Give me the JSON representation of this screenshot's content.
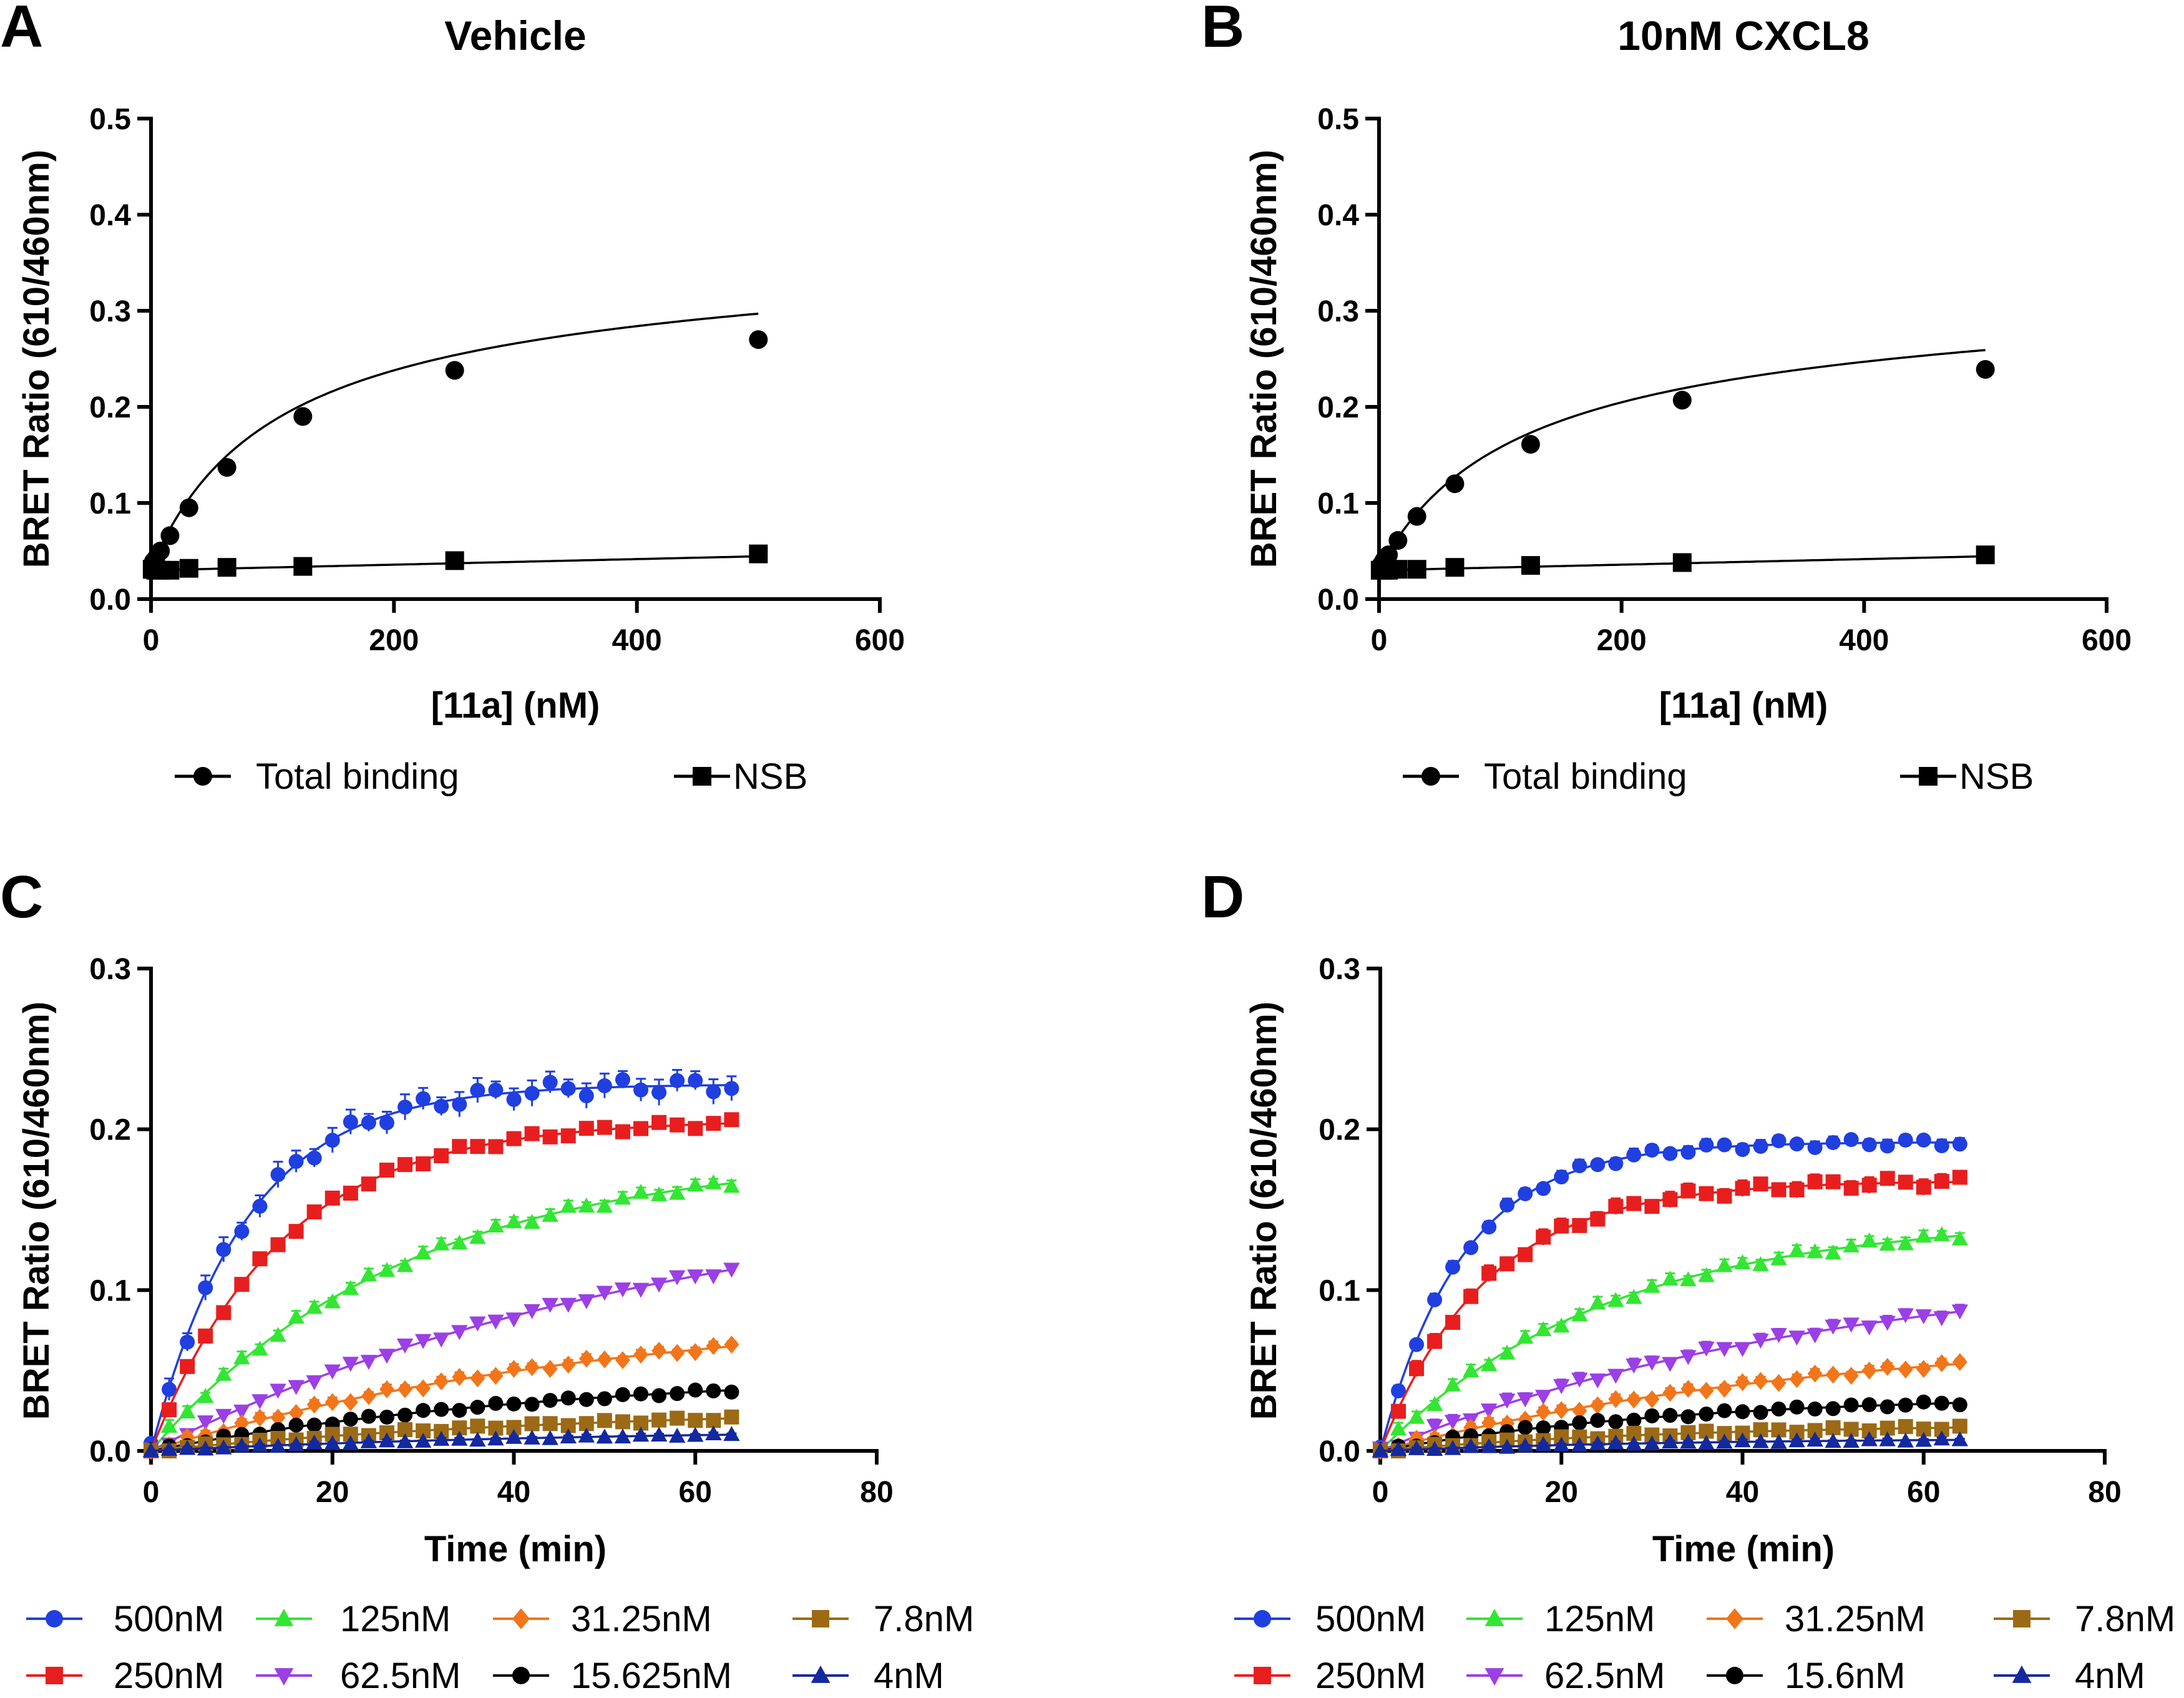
{
  "chart_data": [
    {
      "panel": "A",
      "type": "scatter",
      "title": "Vehicle",
      "xlabel": "[11a] (nM)",
      "ylabel": "BRET Ratio (610/460nm)",
      "xlim": [
        0,
        600
      ],
      "ylim": [
        0,
        0.5
      ],
      "xticks": [
        0,
        200,
        400,
        600
      ],
      "yticks": [
        0.0,
        0.1,
        0.2,
        0.3,
        0.4,
        0.5
      ],
      "xtick_labels": [
        "0",
        "200",
        "400",
        "600"
      ],
      "ytick_labels": [
        "0.0",
        "0.1",
        "0.2",
        "0.3",
        "0.4",
        "0.5"
      ],
      "legend_position": "bottom",
      "series": [
        {
          "name": "Total binding",
          "marker": "circle",
          "color": "#000000",
          "x": [
            0.98,
            1.95,
            3.9,
            7.8,
            15.6,
            31.25,
            62.5,
            125,
            250,
            500
          ],
          "y": [
            0.036,
            0.039,
            0.042,
            0.05,
            0.066,
            0.095,
            0.137,
            0.19,
            0.238,
            0.27
          ],
          "fit": {
            "model": "hyperbola",
            "bmax": 0.3,
            "kd": 100,
            "ns_slope": 3e-05,
            "baseline": 0.032
          }
        },
        {
          "name": "NSB",
          "marker": "square",
          "color": "#000000",
          "x": [
            0.98,
            1.95,
            3.9,
            7.8,
            15.6,
            31.25,
            62.5,
            125,
            250,
            500
          ],
          "y": [
            0.031,
            0.031,
            0.03,
            0.03,
            0.03,
            0.032,
            0.033,
            0.034,
            0.04,
            0.047
          ],
          "fit": {
            "model": "linear",
            "slope": 2.9e-05,
            "intercept": 0.03
          }
        }
      ]
    },
    {
      "panel": "B",
      "type": "scatter",
      "title": "10nM CXCL8",
      "xlabel": "[11a] (nM)",
      "ylabel": "BRET Ratio (610/460nm)",
      "xlim": [
        0,
        600
      ],
      "ylim": [
        0,
        0.5
      ],
      "xticks": [
        0,
        200,
        400,
        600
      ],
      "yticks": [
        0.0,
        0.1,
        0.2,
        0.3,
        0.4,
        0.5
      ],
      "xtick_labels": [
        "0",
        "200",
        "400",
        "600"
      ],
      "ytick_labels": [
        "0.0",
        "0.1",
        "0.2",
        "0.3",
        "0.4",
        "0.5"
      ],
      "legend_position": "bottom",
      "series": [
        {
          "name": "Total binding",
          "marker": "circle",
          "color": "#000000",
          "x": [
            0.98,
            1.95,
            3.9,
            7.8,
            15.6,
            31.25,
            62.5,
            125,
            250,
            500
          ],
          "y": [
            0.034,
            0.036,
            0.04,
            0.046,
            0.061,
            0.086,
            0.12,
            0.161,
            0.207,
            0.239
          ],
          "fit": {
            "model": "hyperbola",
            "bmax": 0.26,
            "kd": 110,
            "ns_slope": 3e-05,
            "baseline": 0.031
          }
        },
        {
          "name": "NSB",
          "marker": "square",
          "color": "#000000",
          "x": [
            0.98,
            1.95,
            3.9,
            7.8,
            15.6,
            31.25,
            62.5,
            125,
            250,
            500
          ],
          "y": [
            0.03,
            0.03,
            0.03,
            0.03,
            0.031,
            0.031,
            0.033,
            0.035,
            0.038,
            0.046
          ],
          "fit": {
            "model": "linear",
            "slope": 2.9e-05,
            "intercept": 0.03
          }
        }
      ]
    },
    {
      "panel": "C",
      "type": "scatter",
      "title": "",
      "xlabel": "Time (min)",
      "ylabel": "BRET Ratio (610/460nm)",
      "xlim": [
        0,
        80
      ],
      "ylim": [
        0,
        0.3
      ],
      "xticks": [
        0,
        20,
        40,
        60,
        80
      ],
      "yticks": [
        0.0,
        0.1,
        0.2,
        0.3
      ],
      "xtick_labels": [
        "0",
        "20",
        "40",
        "60",
        "80"
      ],
      "ytick_labels": [
        "0.0",
        "0.1",
        "0.2",
        "0.3"
      ],
      "legend_position": "bottom",
      "time_points": {
        "start": 0,
        "step": 2,
        "count": 33
      },
      "series": [
        {
          "name": "500nM",
          "color": "#1f3fe0",
          "marker": "circle",
          "plateau": 0.228,
          "kobs": 0.095,
          "overshoot": 0.0,
          "err": 0.008
        },
        {
          "name": "250nM",
          "color": "#e81e1e",
          "marker": "square",
          "plateau": 0.206,
          "kobs": 0.07,
          "overshoot": 0.0,
          "err": 0.004
        },
        {
          "name": "125nM",
          "color": "#33e633",
          "marker": "triangle-up",
          "plateau": 0.185,
          "kobs": 0.036,
          "overshoot": 0.0,
          "err": 0.004
        },
        {
          "name": "62.5nM",
          "color": "#9b3fe6",
          "marker": "triangle-down",
          "plateau": 0.17,
          "kobs": 0.017,
          "overshoot": 0.0,
          "err": 0.003
        },
        {
          "name": "31.25nM",
          "color": "#f2751a",
          "marker": "diamond",
          "plateau": 0.09,
          "kobs": 0.02,
          "overshoot": 0.0,
          "err": 0.003
        },
        {
          "name": "15.625nM",
          "color": "#000000",
          "marker": "circle",
          "plateau": 0.05,
          "kobs": 0.022,
          "overshoot": 0.0,
          "err": 0.002
        },
        {
          "name": "7.8nM",
          "color": "#9c6a14",
          "marker": "square",
          "plateau": 0.028,
          "kobs": 0.02,
          "overshoot": 0.0,
          "err": 0.002
        },
        {
          "name": "4nM",
          "color": "#1428a0",
          "marker": "triangle-up",
          "plateau": 0.014,
          "kobs": 0.02,
          "overshoot": 0.0,
          "err": 0.001
        }
      ]
    },
    {
      "panel": "D",
      "type": "scatter",
      "title": "",
      "xlabel": "Time (min)",
      "ylabel": "BRET Ratio (610/460nm)",
      "xlim": [
        0,
        80
      ],
      "ylim": [
        0,
        0.3
      ],
      "xticks": [
        0,
        20,
        40,
        60,
        80
      ],
      "yticks": [
        0.0,
        0.1,
        0.2,
        0.3
      ],
      "xtick_labels": [
        "0",
        "20",
        "40",
        "60",
        "80"
      ],
      "ytick_labels": [
        "0.0",
        "0.1",
        "0.2",
        "0.3"
      ],
      "legend_position": "bottom",
      "time_points": {
        "start": 0,
        "step": 2,
        "count": 33
      },
      "series": [
        {
          "name": "500nM",
          "color": "#1f3fe0",
          "marker": "circle",
          "plateau": 0.192,
          "kobs": 0.11,
          "overshoot": 0.0,
          "err": 0.004
        },
        {
          "name": "250nM",
          "color": "#e81e1e",
          "marker": "square",
          "plateau": 0.168,
          "kobs": 0.085,
          "overshoot": 0.0,
          "err": 0.005
        },
        {
          "name": "125nM",
          "color": "#33e633",
          "marker": "triangle-up",
          "plateau": 0.145,
          "kobs": 0.04,
          "overshoot": 0.0,
          "err": 0.004
        },
        {
          "name": "62.5nM",
          "color": "#9b3fe6",
          "marker": "triangle-down",
          "plateau": 0.12,
          "kobs": 0.02,
          "overshoot": 0.0,
          "err": 0.004
        },
        {
          "name": "31.25nM",
          "color": "#f2751a",
          "marker": "diamond",
          "plateau": 0.075,
          "kobs": 0.02,
          "overshoot": 0.0,
          "err": 0.003
        },
        {
          "name": "15.6nM",
          "color": "#000000",
          "marker": "circle",
          "plateau": 0.035,
          "kobs": 0.03,
          "overshoot": 0.0,
          "err": 0.002
        },
        {
          "name": "7.8nM",
          "color": "#9c6a14",
          "marker": "square",
          "plateau": 0.017,
          "kobs": 0.03,
          "overshoot": 0.0,
          "err": 0.002
        },
        {
          "name": "4nM",
          "color": "#1428a0",
          "marker": "triangle-up",
          "plateau": 0.008,
          "kobs": 0.03,
          "overshoot": 0.0,
          "err": 0.001
        }
      ]
    }
  ]
}
